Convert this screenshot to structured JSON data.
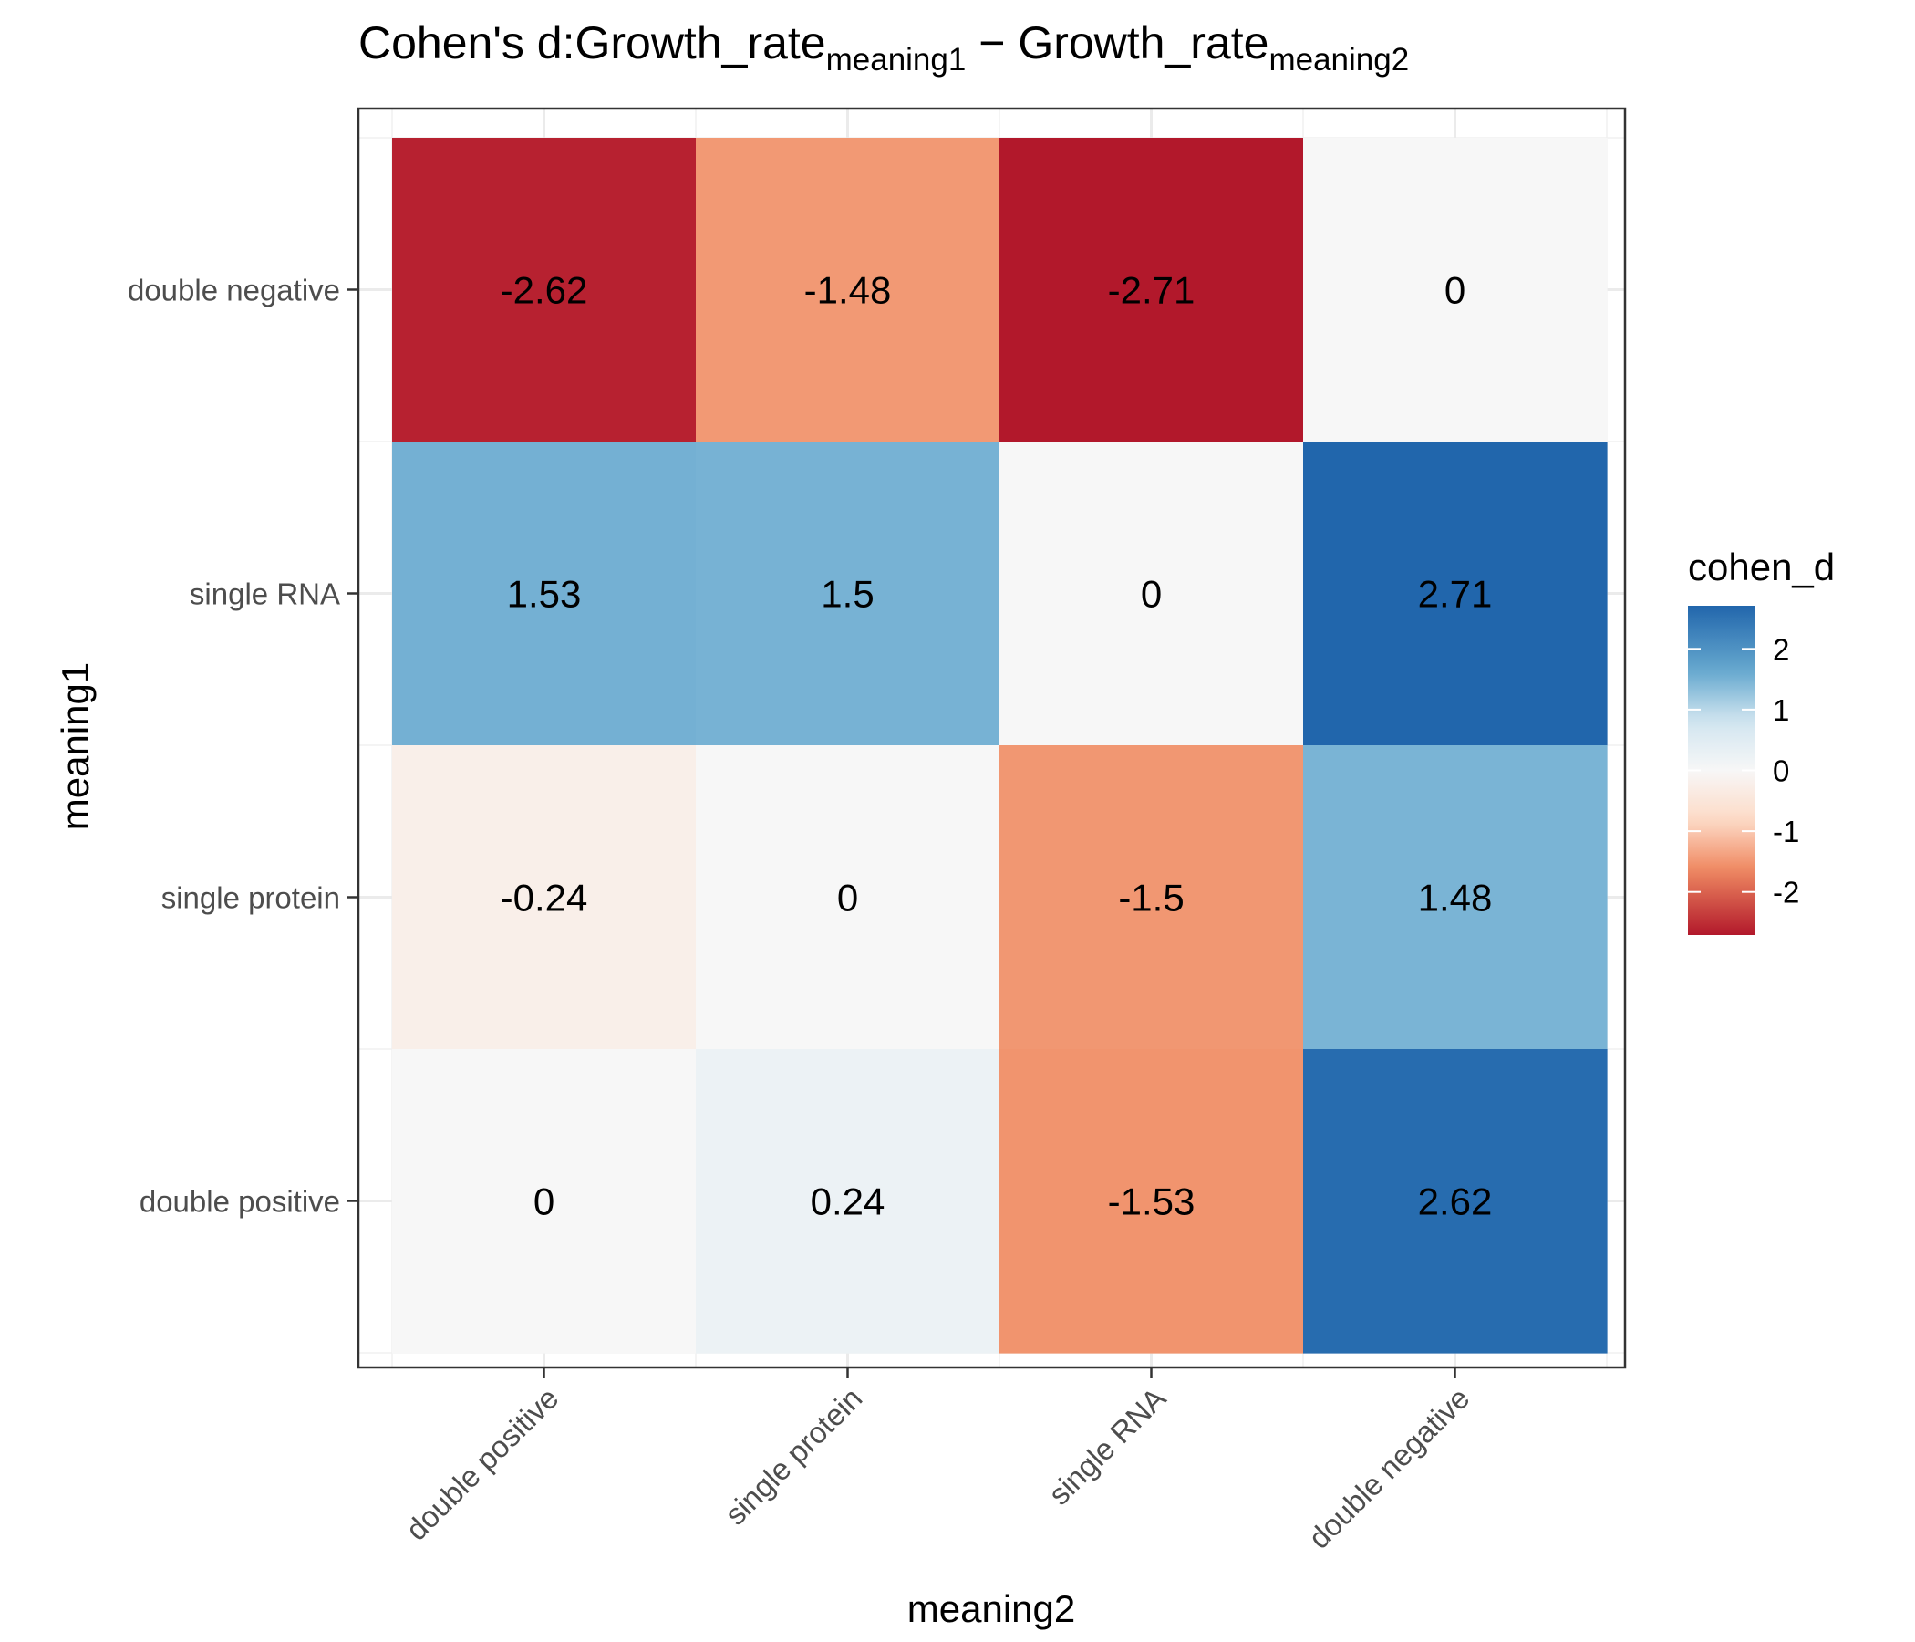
{
  "chart_data": {
    "type": "heatmap",
    "title": {
      "prefix": "Cohen's d:Growth_rate",
      "sub1": "meaning1",
      "minus": " − ",
      "mid": "Growth_rate",
      "sub2": "meaning2"
    },
    "xlabel": "meaning2",
    "ylabel": "meaning1",
    "x_categories": [
      "double positive",
      "single protein",
      "single RNA",
      "double negative"
    ],
    "y_categories_top_to_bottom": [
      "double negative",
      "single RNA",
      "single protein",
      "double positive"
    ],
    "values": [
      [
        -2.62,
        -1.48,
        -2.71,
        0
      ],
      [
        1.53,
        1.5,
        0,
        2.71
      ],
      [
        -0.24,
        0,
        -1.5,
        1.48
      ],
      [
        0,
        0.24,
        -1.53,
        2.62
      ]
    ],
    "legend": {
      "title": "cohen_d",
      "ticks": [
        2,
        1,
        0,
        -1,
        -2
      ],
      "range": [
        -2.71,
        2.71
      ]
    },
    "colors": {
      "low": "#b2182b",
      "mid_low": "#ef8a62",
      "light_low": "#fddbc7",
      "mid": "#f7f7f7",
      "light_high": "#d1e5f0",
      "mid_high": "#67a9cf",
      "high": "#2166ac"
    },
    "grid": true,
    "legend_position": "right"
  }
}
